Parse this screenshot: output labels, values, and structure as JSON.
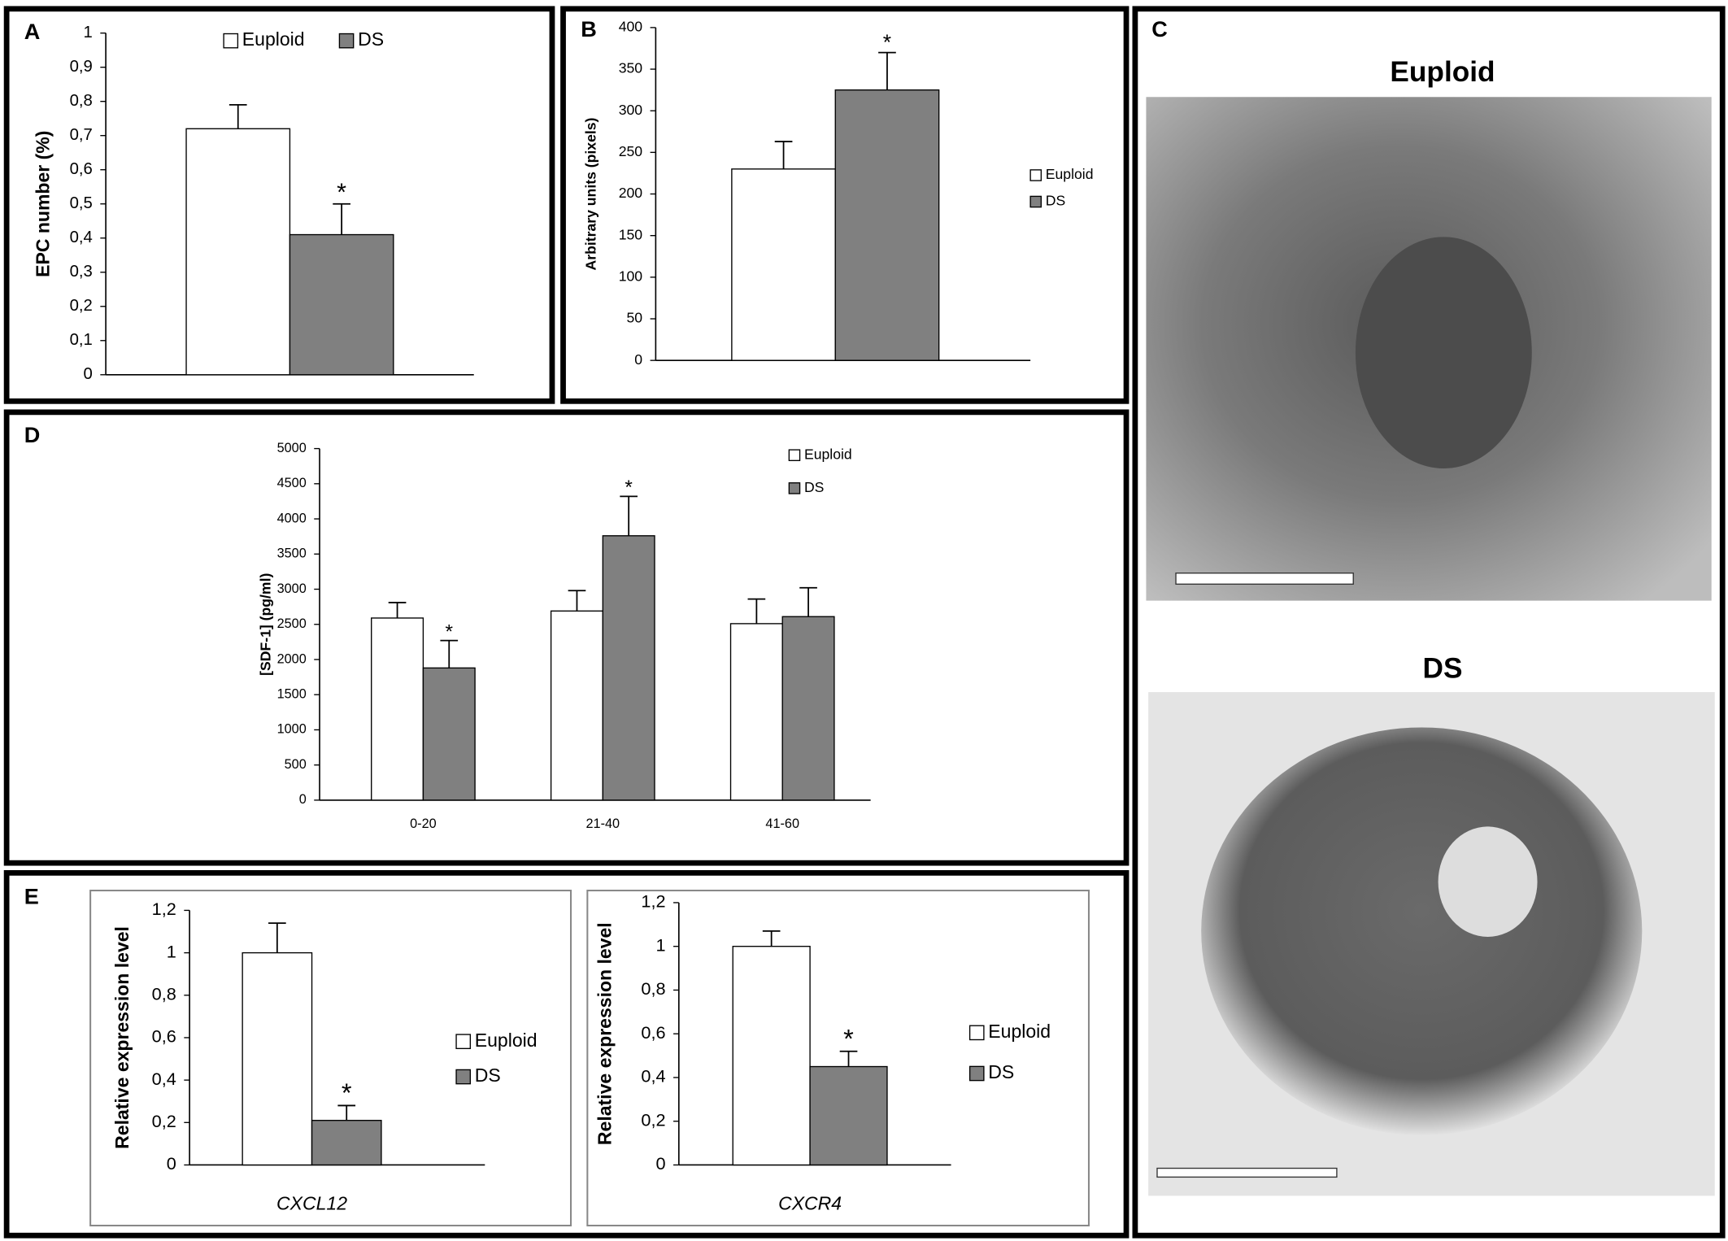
{
  "chart_data": [
    {
      "panel": "A",
      "type": "bar",
      "ylabel": "EPC number (%)",
      "categories": [
        null
      ],
      "series": [
        {
          "name": "Euploid",
          "color": "#ffffff",
          "values": [
            0.72
          ],
          "errors": [
            0.07
          ],
          "annotations": [
            null
          ]
        },
        {
          "name": "DS",
          "color": "#808080",
          "values": [
            0.41
          ],
          "errors": [
            0.09
          ],
          "annotations": [
            "*"
          ]
        }
      ],
      "ylim": [
        0,
        1
      ],
      "yticks": [
        0,
        {
          "value": 0.1,
          "label": "0,1"
        },
        {
          "value": 0.2,
          "label": "0,2"
        },
        {
          "value": 0.3,
          "label": "0,3"
        },
        {
          "value": 0.4,
          "label": "0,4"
        },
        {
          "value": 0.5,
          "label": "0,5"
        },
        {
          "value": 0.6,
          "label": "0,6"
        },
        {
          "value": 0.7,
          "label": "0,7"
        },
        {
          "value": 0.8,
          "label": "0,8"
        },
        {
          "value": 0.9,
          "label": "0,9"
        },
        1
      ],
      "legend": "top"
    },
    {
      "panel": "B",
      "type": "bar",
      "ylabel": "Arbitrary units (pixels)",
      "categories": [
        null
      ],
      "series": [
        {
          "name": "Euploid",
          "color": "#ffffff",
          "values": [
            230
          ],
          "errors": [
            33
          ],
          "annotations": [
            null
          ]
        },
        {
          "name": "DS",
          "color": "#808080",
          "values": [
            325
          ],
          "errors": [
            45
          ],
          "annotations": [
            "*"
          ]
        }
      ],
      "ylim": [
        0,
        400
      ],
      "yticks": [
        0,
        50,
        100,
        150,
        200,
        250,
        300,
        350,
        400
      ],
      "legend": "right"
    },
    {
      "panel": "D",
      "type": "bar",
      "ylabel": "[SDF-1] (pg/ml)",
      "categories": [
        "0-20",
        "21-40",
        "41-60"
      ],
      "series": [
        {
          "name": "Euploid",
          "color": "#ffffff",
          "values": [
            2590,
            2690,
            2510
          ],
          "errors": [
            220,
            290,
            350
          ],
          "annotations": [
            null,
            null,
            null
          ]
        },
        {
          "name": "DS",
          "color": "#808080",
          "values": [
            1880,
            3760,
            2610
          ],
          "errors": [
            390,
            560,
            410
          ],
          "annotations": [
            "*",
            "*",
            null
          ]
        }
      ],
      "ylim": [
        0,
        5000
      ],
      "yticks": [
        0,
        500,
        1000,
        1500,
        2000,
        2500,
        3000,
        3500,
        4000,
        4500,
        5000
      ],
      "legend": "right"
    },
    {
      "panel": "E",
      "type": "bar",
      "ylabel": "Relative expression level",
      "categories": [
        "CXCL12"
      ],
      "series": [
        {
          "name": "Euploid",
          "color": "#ffffff",
          "values": [
            1
          ],
          "errors": [
            0.14
          ],
          "annotations": [
            null
          ]
        },
        {
          "name": "DS",
          "color": "#808080",
          "values": [
            0.21
          ],
          "errors": [
            0.07
          ],
          "annotations": [
            "*"
          ]
        }
      ],
      "ylim": [
        0,
        1.2
      ],
      "yticks": [
        0,
        {
          "value": 0.2,
          "label": "0,2"
        },
        {
          "value": 0.4,
          "label": "0,4"
        },
        {
          "value": 0.6,
          "label": "0,6"
        },
        {
          "value": 0.8,
          "label": "0,8"
        },
        1,
        {
          "value": 1.2,
          "label": "1,2"
        }
      ],
      "legend": "right"
    },
    {
      "type": "bar",
      "ylabel": "Relative expression level",
      "categories": [
        "CXCR4"
      ],
      "series": [
        {
          "name": "Euploid",
          "color": "#ffffff",
          "values": [
            1
          ],
          "errors": [
            0.07
          ],
          "annotations": [
            null
          ]
        },
        {
          "name": "DS",
          "color": "#808080",
          "values": [
            0.45
          ],
          "errors": [
            0.07
          ],
          "annotations": [
            "*"
          ]
        }
      ],
      "ylim": [
        0,
        1.2
      ],
      "yticks": [
        0,
        {
          "value": 0.2,
          "label": "0,2"
        },
        {
          "value": 0.4,
          "label": "0,4"
        },
        {
          "value": 0.6,
          "label": "0,6"
        },
        {
          "value": 0.8,
          "label": "0,8"
        },
        1,
        {
          "value": 1.2,
          "label": "1,2"
        }
      ],
      "legend": "right"
    }
  ],
  "micrographs": {
    "panel": "C",
    "images": [
      {
        "title": "Euploid"
      },
      {
        "title": "DS"
      }
    ]
  }
}
